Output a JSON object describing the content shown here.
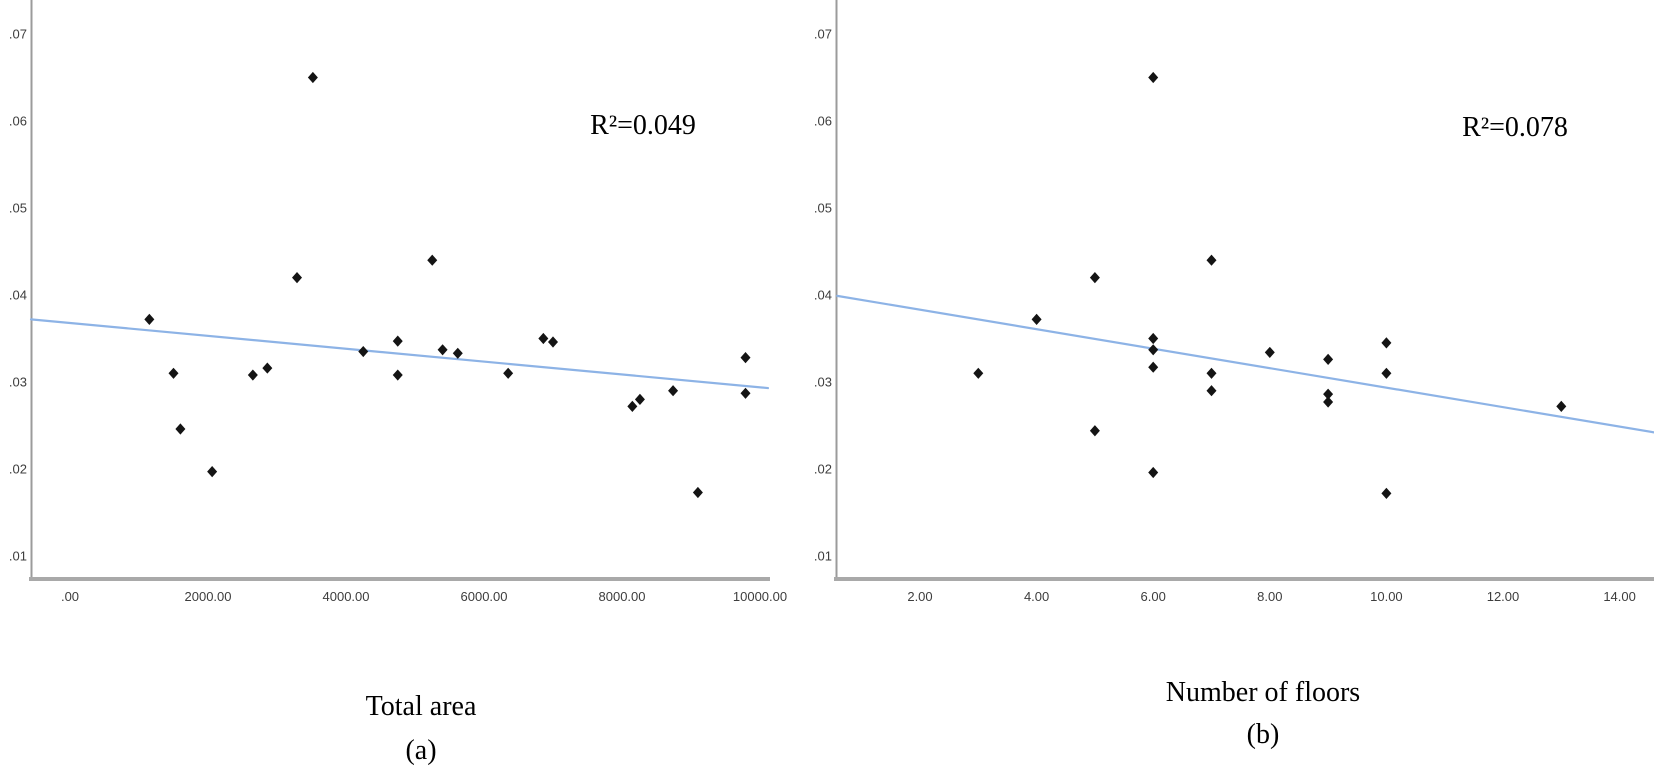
{
  "figure": {
    "background": "#ffffff",
    "marker_color": "#141414",
    "trend_color": "#8db3e6",
    "axis_color": "#9b9b9b",
    "tick_color": "#3d3d3d"
  },
  "chart_data": [
    {
      "type": "scatter",
      "title": "",
      "xlabel": "Total area",
      "sublabel": "(a)",
      "annotation": "R²=0.049",
      "legend": "none",
      "grid": false,
      "marker": "diamond",
      "marker_color": "#141414",
      "trend_color": "#8db3e6",
      "axis_color": "#9b9b9b",
      "xlim": [
        -600,
        10150
      ],
      "ylim": [
        0.007,
        0.0737
      ],
      "xticks": [
        {
          "value": 0,
          "label": ".00"
        },
        {
          "value": 2000,
          "label": "2000.00"
        },
        {
          "value": 4000,
          "label": "4000.00"
        },
        {
          "value": 6000,
          "label": "6000.00"
        },
        {
          "value": 8000,
          "label": "8000.00"
        },
        {
          "value": 10000,
          "label": "10000.00"
        }
      ],
      "yticks": [
        {
          "value": 0.07,
          "label": ".07"
        },
        {
          "value": 0.06,
          "label": ".06"
        },
        {
          "value": 0.05,
          "label": ".05"
        },
        {
          "value": 0.04,
          "label": ".04"
        },
        {
          "value": 0.03,
          "label": ".03"
        },
        {
          "value": 0.02,
          "label": ".02"
        },
        {
          "value": 0.01,
          "label": ".01"
        }
      ],
      "points": [
        [
          1150,
          0.0372
        ],
        [
          1500,
          0.031
        ],
        [
          1600,
          0.0246
        ],
        [
          2060,
          0.0197
        ],
        [
          2650,
          0.0308
        ],
        [
          2860,
          0.0316
        ],
        [
          3290,
          0.042
        ],
        [
          3520,
          0.065
        ],
        [
          4250,
          0.0335
        ],
        [
          4750,
          0.0347
        ],
        [
          4750,
          0.0308
        ],
        [
          5250,
          0.044
        ],
        [
          5400,
          0.0337
        ],
        [
          5620,
          0.0333
        ],
        [
          6350,
          0.031
        ],
        [
          6860,
          0.035
        ],
        [
          7000,
          0.0346
        ],
        [
          8150,
          0.0272
        ],
        [
          8260,
          0.028
        ],
        [
          8740,
          0.029
        ],
        [
          9100,
          0.0173
        ],
        [
          9790,
          0.0328
        ],
        [
          9790,
          0.0287
        ]
      ],
      "trendline": {
        "x1": -565,
        "y1": 0.0372,
        "x2": 10115,
        "y2": 0.0293
      }
    },
    {
      "type": "scatter",
      "title": "",
      "xlabel": "Number of floors",
      "sublabel": "(b)",
      "annotation": "R²=0.078",
      "legend": "none",
      "grid": false,
      "marker": "diamond",
      "marker_color": "#141414",
      "trend_color": "#8db3e6",
      "axis_color": "#9b9b9b",
      "xlim": [
        0.55,
        14.6
      ],
      "ylim": [
        0.007,
        0.0737
      ],
      "xticks": [
        {
          "value": 2,
          "label": "2.00"
        },
        {
          "value": 4,
          "label": "4.00"
        },
        {
          "value": 6,
          "label": "6.00"
        },
        {
          "value": 8,
          "label": "8.00"
        },
        {
          "value": 10,
          "label": "10.00"
        },
        {
          "value": 12,
          "label": "12.00"
        },
        {
          "value": 14,
          "label": "14.00"
        }
      ],
      "yticks": [
        {
          "value": 0.07,
          "label": ".07"
        },
        {
          "value": 0.06,
          "label": ".06"
        },
        {
          "value": 0.05,
          "label": ".05"
        },
        {
          "value": 0.04,
          "label": ".04"
        },
        {
          "value": 0.03,
          "label": ".03"
        },
        {
          "value": 0.02,
          "label": ".02"
        },
        {
          "value": 0.01,
          "label": ".01"
        }
      ],
      "points": [
        [
          3,
          0.031
        ],
        [
          4,
          0.0372
        ],
        [
          5,
          0.042
        ],
        [
          5,
          0.0244
        ],
        [
          6,
          0.065
        ],
        [
          6,
          0.035
        ],
        [
          6,
          0.0337
        ],
        [
          6,
          0.0317
        ],
        [
          6,
          0.0196
        ],
        [
          7,
          0.044
        ],
        [
          7,
          0.031
        ],
        [
          7,
          0.029
        ],
        [
          8,
          0.0334
        ],
        [
          9,
          0.0326
        ],
        [
          9,
          0.0286
        ],
        [
          9,
          0.0277
        ],
        [
          10,
          0.0345
        ],
        [
          10,
          0.031
        ],
        [
          10,
          0.0172
        ],
        [
          13,
          0.0272
        ]
      ],
      "trendline": {
        "x1": 0.58,
        "y1": 0.0399,
        "x2": 14.6,
        "y2": 0.0242
      }
    }
  ]
}
